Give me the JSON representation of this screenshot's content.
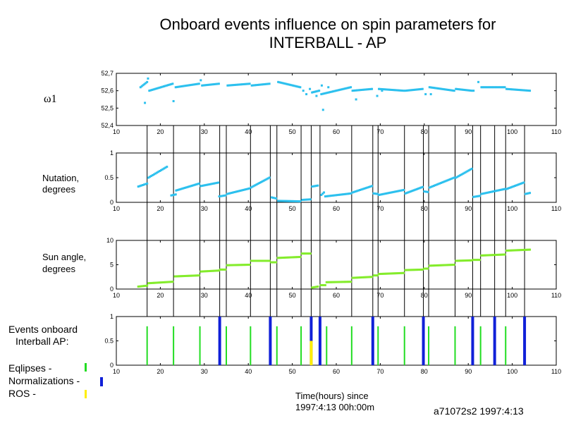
{
  "title_line1": "Onboard  events influence  on  spin parameters for",
  "title_line2": "INTERBALL - AP",
  "x_ticks": [
    10,
    20,
    30,
    40,
    50,
    60,
    70,
    80,
    90,
    100,
    110
  ],
  "xlim": [
    10,
    110
  ],
  "footer": {
    "xlabel_line1": "Time(hours) since",
    "xlabel_line2": "1997:4:13  00h:00m",
    "stamp": "a71072s2 1997:4:13"
  },
  "events_title_line1": "Events onboard",
  "events_title_line2": "Interball AP:",
  "legend": {
    "eclipses": "Eqlipses     -",
    "normalizations": "Normalizations -",
    "ros": "ROS              -"
  },
  "colors": {
    "cyan": "#2cc0ee",
    "green": "#84ec2c",
    "event_green": "#22dd22",
    "blue": "#1020d8",
    "yellow": "#ffee00"
  },
  "event_lines": [
    17,
    23,
    29,
    33.5,
    35,
    40.5,
    45,
    46.5,
    52,
    54.3,
    56.3,
    63.5,
    68.3,
    69.5,
    75.5,
    79.8,
    81,
    87,
    91,
    92.8,
    96,
    98.5,
    102.8
  ],
  "chart_data": [
    {
      "type": "scatter",
      "ylabel": "ω1",
      "ylim": [
        52.4,
        52.7
      ],
      "yticks": [
        "52,4",
        "52,5",
        "52,6",
        "52,7"
      ],
      "ytick_values": [
        52.4,
        52.5,
        52.6,
        52.7
      ],
      "color": "cyan",
      "segments": [
        {
          "x0": 15.5,
          "x1": 17,
          "y0": 52.62,
          "y1": 52.65
        },
        {
          "x0": 17.5,
          "x1": 22.8,
          "y0": 52.6,
          "y1": 52.64
        },
        {
          "x0": 23.5,
          "x1": 28.8,
          "y0": 52.62,
          "y1": 52.64
        },
        {
          "x0": 29.5,
          "x1": 33.3,
          "y0": 52.63,
          "y1": 52.64
        },
        {
          "x0": 35.3,
          "x1": 40.3,
          "y0": 52.63,
          "y1": 52.64
        },
        {
          "x0": 40.8,
          "x1": 44.8,
          "y0": 52.63,
          "y1": 52.64
        },
        {
          "x0": 46.8,
          "x1": 51.8,
          "y0": 52.65,
          "y1": 52.62
        },
        {
          "x0": 54.5,
          "x1": 56.1,
          "y0": 52.59,
          "y1": 52.6
        },
        {
          "x0": 56.6,
          "x1": 63.3,
          "y0": 52.58,
          "y1": 52.62
        },
        {
          "x0": 63.7,
          "x1": 68.1,
          "y0": 52.6,
          "y1": 52.61
        },
        {
          "x0": 69.7,
          "x1": 75.3,
          "y0": 52.61,
          "y1": 52.6
        },
        {
          "x0": 75.7,
          "x1": 79.6,
          "y0": 52.6,
          "y1": 52.61
        },
        {
          "x0": 81.2,
          "x1": 86.8,
          "y0": 52.62,
          "y1": 52.6
        },
        {
          "x0": 87.2,
          "x1": 90.8,
          "y0": 52.61,
          "y1": 52.6
        },
        {
          "x0": 93,
          "x1": 98.3,
          "y0": 52.62,
          "y1": 52.62
        },
        {
          "x0": 98.7,
          "x1": 104,
          "y0": 52.61,
          "y1": 52.6
        }
      ],
      "points": [
        {
          "x": 16.5,
          "y": 52.53
        },
        {
          "x": 17.2,
          "y": 52.67
        },
        {
          "x": 23,
          "y": 52.54
        },
        {
          "x": 29.2,
          "y": 52.66
        },
        {
          "x": 52.5,
          "y": 52.6
        },
        {
          "x": 53.2,
          "y": 52.58
        },
        {
          "x": 54,
          "y": 52.61
        },
        {
          "x": 55.5,
          "y": 52.57
        },
        {
          "x": 56.7,
          "y": 52.63
        },
        {
          "x": 57,
          "y": 52.49
        },
        {
          "x": 58.2,
          "y": 52.62
        },
        {
          "x": 64.5,
          "y": 52.55
        },
        {
          "x": 69.3,
          "y": 52.57
        },
        {
          "x": 70.4,
          "y": 52.6
        },
        {
          "x": 80.3,
          "y": 52.58
        },
        {
          "x": 81.5,
          "y": 52.58
        },
        {
          "x": 92.3,
          "y": 52.65
        },
        {
          "x": 91.2,
          "y": 52.6
        }
      ]
    },
    {
      "type": "scatter",
      "ylabel_line1": "Nutation,",
      "ylabel_line2": "degrees",
      "ylim": [
        0,
        1
      ],
      "yticks": [
        "0",
        "0.5",
        "1"
      ],
      "ytick_values": [
        0,
        0.5,
        1
      ],
      "color": "cyan",
      "segments": [
        {
          "x0": 15,
          "x1": 17,
          "y0": 0.32,
          "y1": 0.38
        },
        {
          "x0": 17.3,
          "x1": 21.5,
          "y0": 0.5,
          "y1": 0.72
        },
        {
          "x0": 22.5,
          "x1": 23.5,
          "y0": 0.14,
          "y1": 0.16
        },
        {
          "x0": 23.6,
          "x1": 28.8,
          "y0": 0.24,
          "y1": 0.38
        },
        {
          "x0": 29.2,
          "x1": 33.2,
          "y0": 0.33,
          "y1": 0.4
        },
        {
          "x0": 33.4,
          "x1": 34.8,
          "y0": 0.12,
          "y1": 0.14
        },
        {
          "x0": 35.2,
          "x1": 40.2,
          "y0": 0.17,
          "y1": 0.28
        },
        {
          "x0": 40.6,
          "x1": 44.8,
          "y0": 0.3,
          "y1": 0.5
        },
        {
          "x0": 45.3,
          "x1": 46.3,
          "y0": 0.1,
          "y1": 0.08
        },
        {
          "x0": 46.8,
          "x1": 51.8,
          "y0": 0.03,
          "y1": 0.02
        },
        {
          "x0": 52.3,
          "x1": 54.1,
          "y0": 0.05,
          "y1": 0.06
        },
        {
          "x0": 54.5,
          "x1": 55.8,
          "y0": 0.32,
          "y1": 0.34
        },
        {
          "x0": 56.6,
          "x1": 57.2,
          "y0": 0.15,
          "y1": 0.2
        },
        {
          "x0": 57.5,
          "x1": 63.3,
          "y0": 0.12,
          "y1": 0.18
        },
        {
          "x0": 63.7,
          "x1": 68.1,
          "y0": 0.2,
          "y1": 0.33
        },
        {
          "x0": 68.5,
          "x1": 69.4,
          "y0": 0.18,
          "y1": 0.17
        },
        {
          "x0": 69.7,
          "x1": 75.3,
          "y0": 0.15,
          "y1": 0.25
        },
        {
          "x0": 75.7,
          "x1": 79.6,
          "y0": 0.18,
          "y1": 0.31
        },
        {
          "x0": 80,
          "x1": 80.8,
          "y0": 0.22,
          "y1": 0.21
        },
        {
          "x0": 81.2,
          "x1": 86.8,
          "y0": 0.3,
          "y1": 0.5
        },
        {
          "x0": 87.2,
          "x1": 90.8,
          "y0": 0.5,
          "y1": 0.68
        },
        {
          "x0": 91.2,
          "x1": 92.6,
          "y0": 0.11,
          "y1": 0.13
        },
        {
          "x0": 93,
          "x1": 98.3,
          "y0": 0.17,
          "y1": 0.27
        },
        {
          "x0": 98.7,
          "x1": 102.6,
          "y0": 0.27,
          "y1": 0.4
        },
        {
          "x0": 103,
          "x1": 104,
          "y0": 0.17,
          "y1": 0.19
        }
      ],
      "points": []
    },
    {
      "type": "scatter",
      "ylabel_line1": "Sun angle,",
      "ylabel_line2": "degrees",
      "ylim": [
        0,
        10
      ],
      "yticks": [
        "0",
        "5",
        "10"
      ],
      "ytick_values": [
        0,
        5,
        10
      ],
      "color": "green",
      "segments": [
        {
          "x0": 15,
          "x1": 17,
          "y0": 0.5,
          "y1": 0.7
        },
        {
          "x0": 17.3,
          "x1": 22.8,
          "y0": 1.2,
          "y1": 1.5
        },
        {
          "x0": 23.3,
          "x1": 28.8,
          "y0": 2.6,
          "y1": 2.8
        },
        {
          "x0": 29.2,
          "x1": 33.3,
          "y0": 3.6,
          "y1": 3.8
        },
        {
          "x0": 33.6,
          "x1": 34.8,
          "y0": 4,
          "y1": 4
        },
        {
          "x0": 35.2,
          "x1": 40.3,
          "y0": 4.9,
          "y1": 5.0
        },
        {
          "x0": 40.7,
          "x1": 44.8,
          "y0": 5.8,
          "y1": 5.8
        },
        {
          "x0": 45.2,
          "x1": 46.3,
          "y0": 5.5,
          "y1": 5.5
        },
        {
          "x0": 46.7,
          "x1": 51.8,
          "y0": 6.4,
          "y1": 6.6
        },
        {
          "x0": 52.2,
          "x1": 54.1,
          "y0": 7.3,
          "y1": 7.3
        },
        {
          "x0": 54.5,
          "x1": 55.8,
          "y0": 0.3,
          "y1": 0.5
        },
        {
          "x0": 56.5,
          "x1": 57.5,
          "y0": 0.8,
          "y1": 0.8
        },
        {
          "x0": 57.8,
          "x1": 63.3,
          "y0": 1.4,
          "y1": 1.5
        },
        {
          "x0": 63.7,
          "x1": 68.1,
          "y0": 2.3,
          "y1": 2.5
        },
        {
          "x0": 68.6,
          "x1": 69.4,
          "y0": 2.8,
          "y1": 2.8
        },
        {
          "x0": 69.7,
          "x1": 75.3,
          "y0": 3.1,
          "y1": 3.3
        },
        {
          "x0": 75.7,
          "x1": 79.6,
          "y0": 3.9,
          "y1": 4.0
        },
        {
          "x0": 80,
          "x1": 80.8,
          "y0": 4.2,
          "y1": 4.2
        },
        {
          "x0": 81.2,
          "x1": 86.8,
          "y0": 4.8,
          "y1": 5.0
        },
        {
          "x0": 87.2,
          "x1": 90.8,
          "y0": 5.8,
          "y1": 5.9
        },
        {
          "x0": 91.2,
          "x1": 92.6,
          "y0": 6.0,
          "y1": 6.0
        },
        {
          "x0": 93,
          "x1": 98.3,
          "y0": 6.9,
          "y1": 7.1
        },
        {
          "x0": 98.7,
          "x1": 104,
          "y0": 7.9,
          "y1": 8.1
        }
      ],
      "points": []
    },
    {
      "type": "bar",
      "ylim": [
        0,
        1
      ],
      "yticks": [
        "0",
        "0.5",
        "1"
      ],
      "ytick_values": [
        0,
        0.5,
        1
      ],
      "events": [
        {
          "kind": "eclipse",
          "x": 17,
          "value": 0.8
        },
        {
          "kind": "eclipse",
          "x": 23,
          "value": 0.8
        },
        {
          "kind": "eclipse",
          "x": 29,
          "value": 0.8
        },
        {
          "kind": "normalization",
          "x": 33.5,
          "value": 1
        },
        {
          "kind": "eclipse",
          "x": 35,
          "value": 0.8
        },
        {
          "kind": "eclipse",
          "x": 40.5,
          "value": 0.8
        },
        {
          "kind": "normalization",
          "x": 45,
          "value": 1
        },
        {
          "kind": "eclipse",
          "x": 46.5,
          "value": 0.8
        },
        {
          "kind": "eclipse",
          "x": 52,
          "value": 0.8
        },
        {
          "kind": "normalization",
          "x": 54.3,
          "value": 1
        },
        {
          "kind": "ros",
          "x": 54.3,
          "value": 0.5
        },
        {
          "kind": "normalization",
          "x": 56.3,
          "value": 1
        },
        {
          "kind": "eclipse",
          "x": 57.8,
          "value": 0.8
        },
        {
          "kind": "eclipse",
          "x": 63.5,
          "value": 0.8
        },
        {
          "kind": "normalization",
          "x": 68.3,
          "value": 1
        },
        {
          "kind": "eclipse",
          "x": 69.5,
          "value": 0.8
        },
        {
          "kind": "eclipse",
          "x": 75.5,
          "value": 0.8
        },
        {
          "kind": "normalization",
          "x": 79.8,
          "value": 1
        },
        {
          "kind": "eclipse",
          "x": 81,
          "value": 0.8
        },
        {
          "kind": "eclipse",
          "x": 87,
          "value": 0.8
        },
        {
          "kind": "normalization",
          "x": 91,
          "value": 1
        },
        {
          "kind": "eclipse",
          "x": 92.8,
          "value": 0.8
        },
        {
          "kind": "normalization",
          "x": 96,
          "value": 1
        },
        {
          "kind": "eclipse",
          "x": 98.5,
          "value": 0.8
        },
        {
          "kind": "normalization",
          "x": 102.8,
          "value": 1
        }
      ]
    }
  ]
}
